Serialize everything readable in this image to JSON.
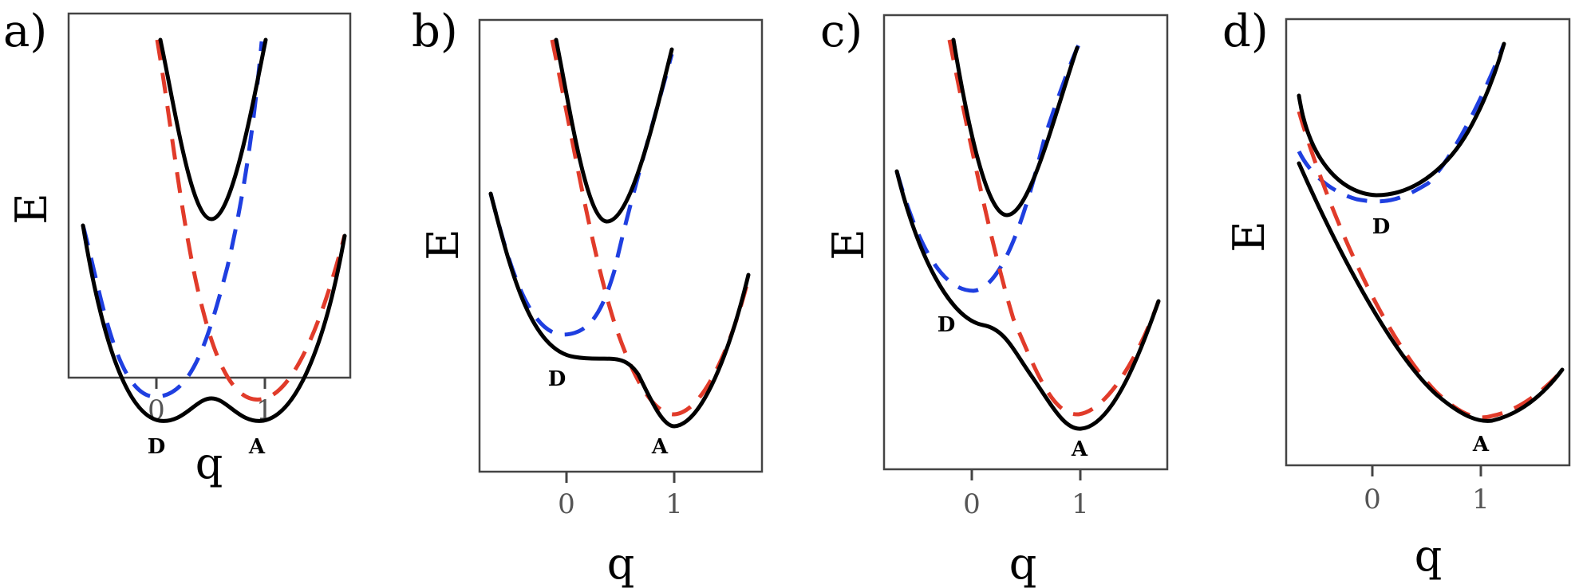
{
  "colors": {
    "donor": "#1f3fe0",
    "acceptor": "#e13b2a",
    "adiabatic": "#000000"
  },
  "panels": [
    {
      "letter": "a)",
      "ylabel": "E",
      "xlabel": "q",
      "ticks": [
        "0",
        "1"
      ],
      "labels": {
        "D": "D",
        "A": "A"
      }
    },
    {
      "letter": "b)",
      "ylabel": "E",
      "xlabel": "q",
      "ticks": [
        "0",
        "1"
      ],
      "labels": {
        "D": "D",
        "A": "A"
      }
    },
    {
      "letter": "c)",
      "ylabel": "E",
      "xlabel": "q",
      "ticks": [
        "0",
        "1"
      ],
      "labels": {
        "D": "D",
        "A": "A"
      }
    },
    {
      "letter": "d)",
      "ylabel": "E",
      "xlabel": "q",
      "ticks": [
        "0",
        "1"
      ],
      "labels": {
        "D": "D",
        "A": "A"
      }
    }
  ]
}
